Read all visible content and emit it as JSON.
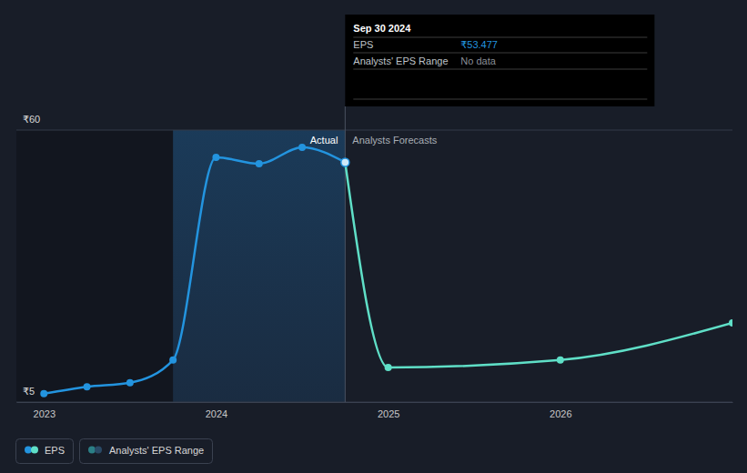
{
  "chart_data": {
    "type": "line",
    "xlim": [
      2022.84,
      2027
    ],
    "xticks": [
      2023,
      2024,
      2025,
      2026
    ],
    "ylim": [
      5,
      60
    ],
    "yticks": [
      {
        "value": 5,
        "label": "₹5"
      },
      {
        "value": 60,
        "label": "₹60"
      }
    ],
    "grid": true,
    "series": [
      {
        "name": "EPS",
        "color": "#2394df",
        "marker": "circle",
        "x": [
          2023,
          2023.25,
          2023.5,
          2023.75,
          2024,
          2024.25,
          2024.5,
          2024.75
        ],
        "values": [
          6.7,
          8.1,
          8.9,
          13.5,
          54.5,
          53.2,
          56.5,
          53.477
        ]
      },
      {
        "name": "Analysts Forecasts",
        "color": "#5fdfc7",
        "marker": "circle",
        "x": [
          2024.75,
          2025,
          2026,
          2027
        ],
        "values": [
          53.477,
          12.0,
          13.5,
          21.0
        ]
      }
    ],
    "annotations": [
      "Actual"
    ],
    "range": {
      "name": "Analysts' EPS Range",
      "colors": [
        "#2b7f86",
        "#2a4a66"
      ]
    },
    "tooltip": {
      "title": "Sep 30 2024",
      "rows": [
        {
          "label": "EPS",
          "value": 53.477,
          "value_label": "₹53.477"
        },
        {
          "label": "Analysts' EPS Range",
          "value_label": "No data"
        }
      ]
    }
  }
}
